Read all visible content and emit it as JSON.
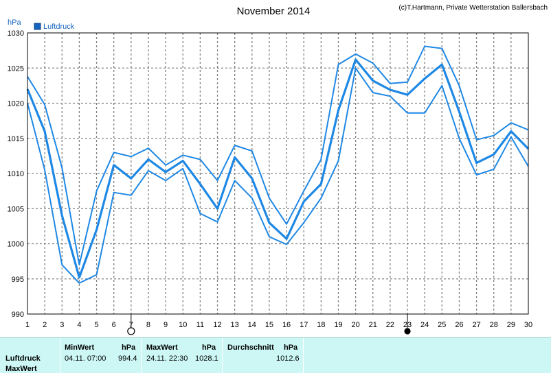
{
  "chart_data": {
    "type": "line",
    "title": "November 2014",
    "credit": "(c)T.Hartmann, Private Wetterstation Ballersbach",
    "ylabel": "hPa",
    "legend": "Luftdruck",
    "ylim": [
      990,
      1030
    ],
    "y_ticks": [
      990,
      995,
      1000,
      1005,
      1010,
      1015,
      1020,
      1025,
      1030
    ],
    "xlim": [
      1,
      30
    ],
    "x": [
      1,
      2,
      3,
      4,
      5,
      6,
      7,
      8,
      9,
      10,
      11,
      12,
      13,
      14,
      15,
      16,
      17,
      18,
      19,
      20,
      21,
      22,
      23,
      24,
      25,
      26,
      27,
      28,
      29,
      30
    ],
    "markers": [
      {
        "day": 7,
        "symbol": "circle-open"
      },
      {
        "day": 23,
        "symbol": "circle-filled"
      }
    ],
    "series": [
      {
        "role": "max",
        "values": [
          1023.8,
          1019.8,
          1010.8,
          997.0,
          1007.5,
          1013.0,
          1012.4,
          1013.6,
          1011.2,
          1012.6,
          1012.0,
          1009.0,
          1014.0,
          1013.2,
          1006.5,
          1002.8,
          1007.5,
          1012.0,
          1025.5,
          1027.0,
          1025.7,
          1022.8,
          1023.0,
          1028.1,
          1027.8,
          1022.5,
          1014.8,
          1015.4,
          1017.2,
          1016.2
        ]
      },
      {
        "role": "mean",
        "values": [
          1022.0,
          1016.0,
          1004.0,
          995.2,
          1002.0,
          1011.2,
          1009.3,
          1012.0,
          1010.2,
          1011.8,
          1008.5,
          1005.0,
          1012.3,
          1009.3,
          1003.0,
          1000.7,
          1006.0,
          1008.5,
          1019.0,
          1026.2,
          1023.2,
          1021.9,
          1021.2,
          1023.5,
          1025.5,
          1018.8,
          1011.5,
          1012.7,
          1016.0,
          1013.5
        ]
      },
      {
        "role": "min",
        "values": [
          1020.0,
          1010.5,
          997.0,
          994.4,
          995.6,
          1007.3,
          1006.9,
          1010.4,
          1009.0,
          1010.7,
          1004.3,
          1003.1,
          1009.0,
          1006.5,
          1001.0,
          999.9,
          1003.0,
          1006.5,
          1011.8,
          1025.0,
          1021.5,
          1021.0,
          1018.6,
          1018.6,
          1022.5,
          1015.0,
          1009.8,
          1010.6,
          1015.2,
          1011.0
        ]
      }
    ]
  },
  "stats": {
    "row_labels": [
      "Luftdruck",
      "MaxWert"
    ],
    "min": {
      "header": "MinWert",
      "unit": "hPa",
      "datetime": "04.11.  07:00",
      "value": "994.4"
    },
    "max": {
      "header": "MaxWert",
      "unit": "hPa",
      "datetime": "24.11.  22:30",
      "value": "1028.1"
    },
    "avg": {
      "header": "Durchschnitt",
      "unit": "hPa",
      "value": "1012.6"
    }
  },
  "colors": {
    "line": "#1e88e5",
    "legend": "#1565c0",
    "stats_bg": "#ccf7f5"
  }
}
